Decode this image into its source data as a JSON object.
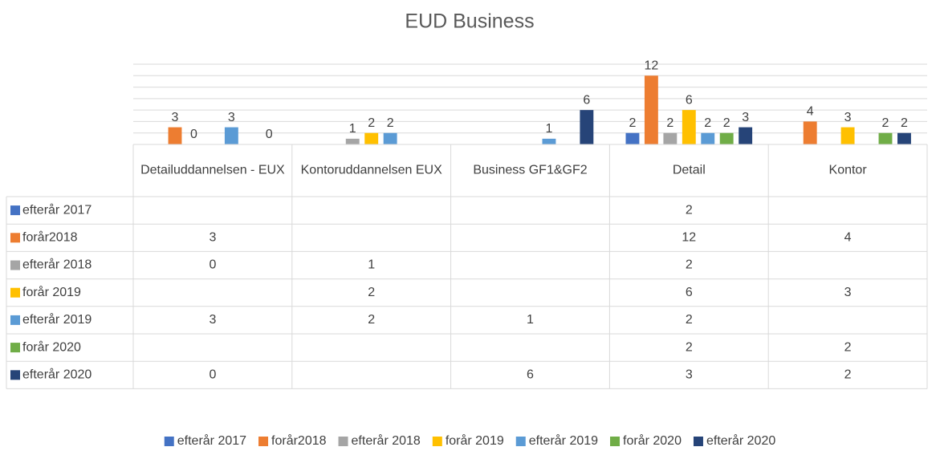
{
  "chart_data": {
    "type": "bar",
    "title": "EUD Business",
    "categories": [
      "Detailuddannelsen - EUX",
      "Kontoruddannelsen EUX",
      "Business GF1&GF2",
      "Detail",
      "Kontor"
    ],
    "series": [
      {
        "name": "efterår 2017",
        "color": "#4472c4",
        "values": [
          null,
          null,
          null,
          2,
          null
        ]
      },
      {
        "name": "forår2018",
        "color": "#ed7d31",
        "values": [
          3,
          null,
          null,
          12,
          4
        ]
      },
      {
        "name": "efterår 2018",
        "color": "#a5a5a5",
        "values": [
          0,
          1,
          null,
          2,
          null
        ]
      },
      {
        "name": "forår 2019",
        "color": "#ffc000",
        "values": [
          null,
          2,
          null,
          6,
          3
        ]
      },
      {
        "name": "efterår 2019",
        "color": "#5b9bd5",
        "values": [
          3,
          2,
          1,
          2,
          null
        ]
      },
      {
        "name": "forår 2020",
        "color": "#70ad47",
        "values": [
          null,
          null,
          null,
          2,
          2
        ]
      },
      {
        "name": "efterår 2020",
        "color": "#264478",
        "values": [
          0,
          null,
          6,
          3,
          2
        ]
      }
    ],
    "ylim": [
      0,
      14
    ],
    "yticks": [
      0,
      2,
      4,
      6,
      8,
      10,
      12,
      14
    ],
    "grid": true,
    "legend": "bottom",
    "data_table": true
  }
}
